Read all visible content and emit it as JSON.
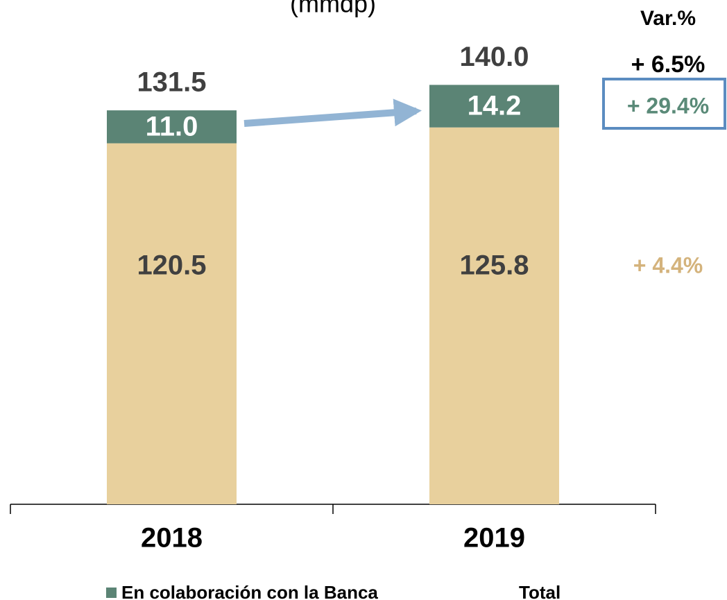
{
  "chart_data": {
    "type": "stacked_bar",
    "subtitle": "(mmdp)",
    "categories": [
      "2018",
      "2019"
    ],
    "series": [
      {
        "color": "#e8d09d",
        "values": [
          120.5,
          125.8
        ]
      },
      {
        "name": "En colaboración con la Banca",
        "color": "#5b8475",
        "values": [
          11.0,
          14.2
        ],
        "value_labels": [
          "11.0",
          "14.2"
        ]
      }
    ],
    "totals": {
      "name": "Total",
      "values": [
        131.5,
        140.0
      ],
      "value_labels": [
        "131.5",
        "140.0"
      ]
    },
    "variation": {
      "title": "Var.%",
      "values": [
        6.5,
        29.4,
        4.4
      ],
      "value_labels": [
        "+ 6.5%",
        "+ 29.4%",
        "+ 4.4%"
      ],
      "colors": [
        "#000000",
        "#5a8a78",
        "#d4b37c"
      ]
    },
    "ylim": [
      0,
      160
    ]
  }
}
